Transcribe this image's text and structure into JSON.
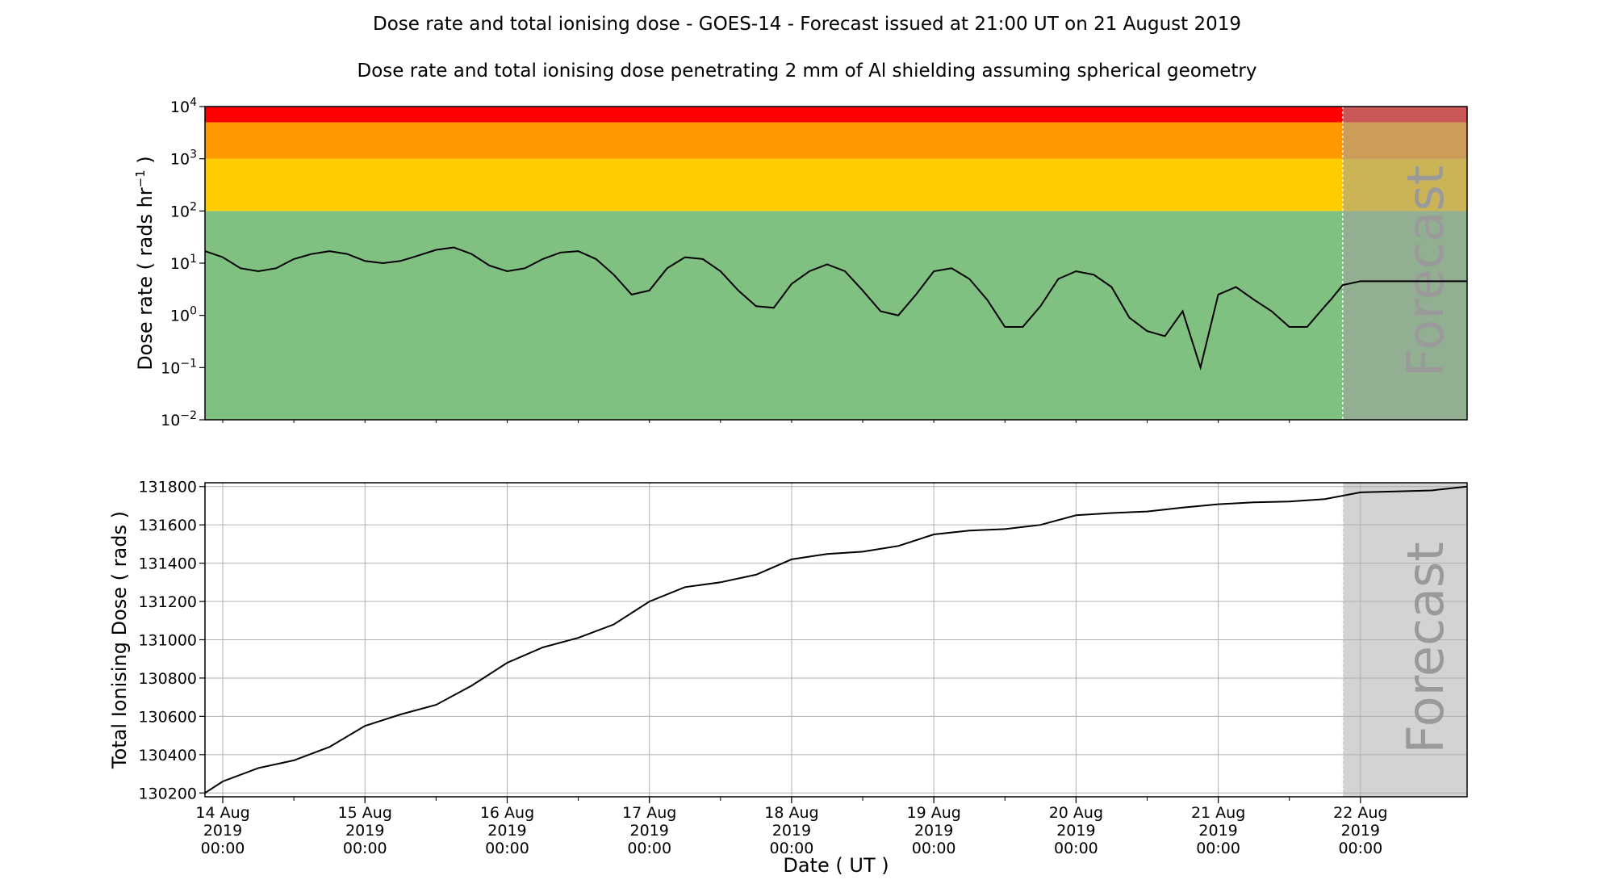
{
  "title": "Dose rate and total ionising dose - GOES-14 - Forecast issued at 21:00 UT on 21 August 2019",
  "subtitle": "Dose rate and total ionising dose penetrating 2 mm of Al shielding assuming spherical geometry",
  "forecast_label": "Forecast",
  "colors": {
    "line": "#000000",
    "band_green": "#80c080",
    "band_yellow": "#ffcc00",
    "band_orange": "#ff9900",
    "band_red": "#ff0000",
    "forecast_shade": "#d3d3d3",
    "grid": "#b0b0b0"
  },
  "chart_data": [
    {
      "type": "line",
      "ylabel_base": "Dose rate ( rads hr",
      "ylabel_sup": "−1",
      "ylabel_end": " )",
      "yscale": "log",
      "ylim": [
        0.01,
        10000
      ],
      "y_ticks": [
        {
          "base": "10",
          "exp": "−2",
          "value": 0.01
        },
        {
          "base": "10",
          "exp": "−1",
          "value": 0.1
        },
        {
          "base": "10",
          "exp": "0",
          "value": 1
        },
        {
          "base": "10",
          "exp": "1",
          "value": 10
        },
        {
          "base": "10",
          "exp": "2",
          "value": 100
        },
        {
          "base": "10",
          "exp": "3",
          "value": 1000
        },
        {
          "base": "10",
          "exp": "4",
          "value": 10000
        }
      ],
      "threshold_bands": [
        {
          "from": 0.01,
          "to": 100,
          "color": "#80c080"
        },
        {
          "from": 100,
          "to": 1000,
          "color": "#ffcc00"
        },
        {
          "from": 1000,
          "to": 5000,
          "color": "#ff9900"
        },
        {
          "from": 5000,
          "to": 10000,
          "color": "#ff0000"
        }
      ],
      "x_start": "2019-08-13 21:00",
      "x_end": "2019-08-22 18:00",
      "forecast_start": "2019-08-21 21:00",
      "grid": false,
      "series": [
        {
          "x": [
            "2019-08-13 21:00",
            "2019-08-14 00:00",
            "2019-08-14 03:00",
            "2019-08-14 06:00",
            "2019-08-14 09:00",
            "2019-08-14 12:00",
            "2019-08-14 15:00",
            "2019-08-14 18:00",
            "2019-08-14 21:00",
            "2019-08-15 00:00",
            "2019-08-15 03:00",
            "2019-08-15 06:00",
            "2019-08-15 09:00",
            "2019-08-15 12:00",
            "2019-08-15 15:00",
            "2019-08-15 18:00",
            "2019-08-15 21:00",
            "2019-08-16 00:00",
            "2019-08-16 03:00",
            "2019-08-16 06:00",
            "2019-08-16 09:00",
            "2019-08-16 12:00",
            "2019-08-16 15:00",
            "2019-08-16 18:00",
            "2019-08-16 21:00",
            "2019-08-17 00:00",
            "2019-08-17 03:00",
            "2019-08-17 06:00",
            "2019-08-17 09:00",
            "2019-08-17 12:00",
            "2019-08-17 15:00",
            "2019-08-17 18:00",
            "2019-08-17 21:00",
            "2019-08-18 00:00",
            "2019-08-18 03:00",
            "2019-08-18 06:00",
            "2019-08-18 09:00",
            "2019-08-18 12:00",
            "2019-08-18 15:00",
            "2019-08-18 18:00",
            "2019-08-18 21:00",
            "2019-08-19 00:00",
            "2019-08-19 03:00",
            "2019-08-19 06:00",
            "2019-08-19 09:00",
            "2019-08-19 12:00",
            "2019-08-19 15:00",
            "2019-08-19 18:00",
            "2019-08-19 21:00",
            "2019-08-20 00:00",
            "2019-08-20 03:00",
            "2019-08-20 06:00",
            "2019-08-20 09:00",
            "2019-08-20 12:00",
            "2019-08-20 15:00",
            "2019-08-20 18:00",
            "2019-08-20 21:00",
            "2019-08-21 00:00",
            "2019-08-21 03:00",
            "2019-08-21 06:00",
            "2019-08-21 09:00",
            "2019-08-21 12:00",
            "2019-08-21 15:00",
            "2019-08-21 18:00",
            "2019-08-21 19:00",
            "2019-08-21 21:00",
            "2019-08-22 00:00",
            "2019-08-22 03:00",
            "2019-08-22 06:00",
            "2019-08-22 09:00",
            "2019-08-22 12:00",
            "2019-08-22 15:00",
            "2019-08-22 18:00"
          ],
          "values": [
            17,
            13,
            8,
            7,
            8,
            12,
            15,
            17,
            15,
            11,
            10,
            11,
            14,
            18,
            20,
            15,
            9,
            7,
            8,
            12,
            16,
            17,
            12,
            6,
            2.5,
            3,
            8,
            13,
            12,
            7,
            3,
            1.5,
            1.4,
            4,
            7,
            9.5,
            7,
            3,
            1.2,
            1.0,
            2.5,
            7,
            8,
            5,
            2,
            0.6,
            0.6,
            1.5,
            5,
            7,
            6,
            3.5,
            0.9,
            0.5,
            0.4,
            1.2,
            0.1,
            2.5,
            3.5,
            2,
            1.2,
            0.6,
            0.6,
            1.5,
            2,
            3.8,
            4.5,
            4.5,
            4.5,
            4.5,
            4.5,
            4.5,
            4.5
          ]
        }
      ]
    },
    {
      "type": "line",
      "ylabel": "Total Ionising Dose ( rads )",
      "xlabel": "Date ( UT )",
      "ylim": [
        130180,
        131820
      ],
      "y_ticks": [
        130200,
        130400,
        130600,
        130800,
        131000,
        131200,
        131400,
        131600,
        131800
      ],
      "x_ticks": [
        {
          "date": "2019-08-14 00:00",
          "line1": "14 Aug",
          "line2": "2019",
          "line3": "00:00"
        },
        {
          "date": "2019-08-15 00:00",
          "line1": "15 Aug",
          "line2": "2019",
          "line3": "00:00"
        },
        {
          "date": "2019-08-16 00:00",
          "line1": "16 Aug",
          "line2": "2019",
          "line3": "00:00"
        },
        {
          "date": "2019-08-17 00:00",
          "line1": "17 Aug",
          "line2": "2019",
          "line3": "00:00"
        },
        {
          "date": "2019-08-18 00:00",
          "line1": "18 Aug",
          "line2": "2019",
          "line3": "00:00"
        },
        {
          "date": "2019-08-19 00:00",
          "line1": "19 Aug",
          "line2": "2019",
          "line3": "00:00"
        },
        {
          "date": "2019-08-20 00:00",
          "line1": "20 Aug",
          "line2": "2019",
          "line3": "00:00"
        },
        {
          "date": "2019-08-21 00:00",
          "line1": "21 Aug",
          "line2": "2019",
          "line3": "00:00"
        },
        {
          "date": "2019-08-22 00:00",
          "line1": "22 Aug",
          "line2": "2019",
          "line3": "00:00"
        }
      ],
      "x_start": "2019-08-13 21:00",
      "x_end": "2019-08-22 18:00",
      "forecast_start": "2019-08-21 21:00",
      "grid": true,
      "series": [
        {
          "x": [
            "2019-08-13 21:00",
            "2019-08-14 00:00",
            "2019-08-14 06:00",
            "2019-08-14 12:00",
            "2019-08-14 18:00",
            "2019-08-15 00:00",
            "2019-08-15 06:00",
            "2019-08-15 12:00",
            "2019-08-15 18:00",
            "2019-08-16 00:00",
            "2019-08-16 06:00",
            "2019-08-16 12:00",
            "2019-08-16 18:00",
            "2019-08-17 00:00",
            "2019-08-17 06:00",
            "2019-08-17 12:00",
            "2019-08-17 18:00",
            "2019-08-18 00:00",
            "2019-08-18 06:00",
            "2019-08-18 12:00",
            "2019-08-18 18:00",
            "2019-08-19 00:00",
            "2019-08-19 06:00",
            "2019-08-19 12:00",
            "2019-08-19 18:00",
            "2019-08-20 00:00",
            "2019-08-20 06:00",
            "2019-08-20 12:00",
            "2019-08-20 18:00",
            "2019-08-21 00:00",
            "2019-08-21 06:00",
            "2019-08-21 12:00",
            "2019-08-21 18:00",
            "2019-08-22 00:00",
            "2019-08-22 06:00",
            "2019-08-22 12:00",
            "2019-08-22 18:00"
          ],
          "values": [
            130200,
            130260,
            130330,
            130370,
            130440,
            130550,
            130610,
            130660,
            130760,
            130880,
            130960,
            131010,
            131080,
            131200,
            131275,
            131300,
            131340,
            131420,
            131448,
            131460,
            131490,
            131550,
            131570,
            131578,
            131600,
            131650,
            131662,
            131670,
            131690,
            131708,
            131718,
            131722,
            131735,
            131770,
            131775,
            131780,
            131800
          ]
        }
      ]
    }
  ]
}
